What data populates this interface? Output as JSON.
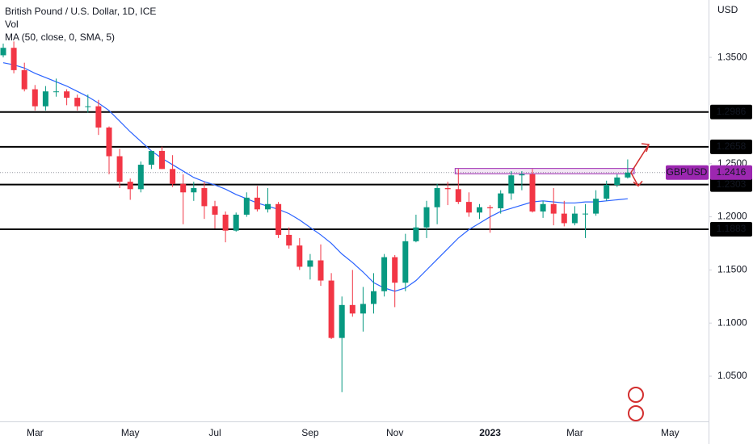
{
  "chart_data": {
    "type": "candlestick",
    "title": "British Pound / U.S. Dollar, 1D, ICE",
    "volume_label": "Vol",
    "currency": "USD",
    "categories": [
      null,
      null,
      null,
      "Mar",
      null,
      null,
      null,
      null,
      null,
      null,
      null,
      null,
      "May",
      null,
      null,
      null,
      null,
      null,
      null,
      null,
      "Jul",
      null,
      null,
      null,
      null,
      null,
      null,
      null,
      null,
      "Sep",
      null,
      null,
      null,
      null,
      null,
      null,
      null,
      "Nov",
      null,
      null,
      null,
      null,
      null,
      null,
      null,
      null,
      "2023",
      null,
      null,
      null,
      null,
      null,
      null,
      null,
      "Mar",
      null,
      null,
      null,
      null,
      null,
      null,
      null,
      null,
      "May"
    ],
    "open": [
      1.352,
      1.359,
      1.338,
      1.32,
      1.304,
      1.318,
      1.318,
      1.312,
      1.304,
      1.304,
      1.284,
      1.257,
      1.233,
      1.226,
      1.249,
      1.262,
      1.245,
      1.231,
      1.223,
      1.227,
      1.21,
      1.202,
      1.187,
      1.202,
      1.218,
      1.207,
      1.212,
      1.183,
      1.173,
      1.153,
      1.159,
      1.14,
      1.086,
      1.117,
      1.109,
      1.118,
      1.13,
      1.162,
      1.138,
      1.177,
      1.19,
      1.209,
      1.227,
      1.226,
      1.214,
      1.204,
      1.209,
      1.208,
      1.222,
      1.239,
      1.24,
      1.205,
      1.212,
      1.203,
      1.194,
      1.203,
      1.203,
      1.217,
      1.23,
      1.237,
      null,
      null,
      null,
      null
    ],
    "high": [
      1.363,
      1.365,
      1.345,
      1.324,
      1.323,
      1.33,
      1.32,
      1.315,
      1.315,
      1.31,
      1.285,
      1.264,
      1.236,
      1.252,
      1.262,
      1.266,
      1.258,
      1.24,
      1.233,
      1.233,
      1.215,
      1.205,
      1.204,
      1.223,
      1.229,
      1.227,
      1.214,
      1.19,
      1.18,
      1.165,
      1.174,
      1.147,
      1.125,
      1.15,
      1.134,
      1.147,
      1.165,
      1.164,
      1.184,
      1.202,
      1.215,
      1.231,
      1.233,
      1.245,
      1.223,
      1.212,
      1.211,
      1.225,
      1.243,
      1.243,
      1.245,
      1.215,
      1.227,
      1.215,
      1.21,
      1.212,
      1.225,
      1.234,
      1.24,
      1.254,
      null,
      null,
      null,
      null
    ],
    "low": [
      1.35,
      1.335,
      1.318,
      1.3,
      1.3,
      1.313,
      1.305,
      1.3,
      1.298,
      1.277,
      1.24,
      1.227,
      1.216,
      1.223,
      1.245,
      1.245,
      1.228,
      1.193,
      1.215,
      1.198,
      1.189,
      1.176,
      1.186,
      1.2,
      1.205,
      1.204,
      1.18,
      1.17,
      1.15,
      1.141,
      1.135,
      1.085,
      1.035,
      1.106,
      1.092,
      1.109,
      1.125,
      1.115,
      1.13,
      1.176,
      1.18,
      1.193,
      1.211,
      1.212,
      1.2,
      1.198,
      1.185,
      1.203,
      1.216,
      1.225,
      1.204,
      1.199,
      1.192,
      1.191,
      1.192,
      1.18,
      1.201,
      1.215,
      1.228,
      1.236,
      null,
      null,
      null,
      null
    ],
    "close": [
      1.359,
      1.338,
      1.32,
      1.304,
      1.318,
      1.318,
      1.312,
      1.304,
      1.304,
      1.284,
      1.257,
      1.233,
      1.226,
      1.249,
      1.262,
      1.245,
      1.231,
      1.223,
      1.227,
      1.21,
      1.202,
      1.187,
      1.202,
      1.218,
      1.207,
      1.212,
      1.183,
      1.173,
      1.153,
      1.159,
      1.14,
      1.086,
      1.117,
      1.109,
      1.118,
      1.13,
      1.162,
      1.138,
      1.177,
      1.19,
      1.209,
      1.227,
      1.226,
      1.214,
      1.204,
      1.209,
      1.208,
      1.222,
      1.239,
      1.24,
      1.205,
      1.212,
      1.203,
      1.194,
      1.203,
      1.203,
      1.217,
      1.23,
      1.237,
      1.2416,
      null,
      null,
      null,
      null
    ],
    "up_color": "#089981",
    "down_color": "#f23645",
    "ma": {
      "name": "MA (50, close, 0, SMA, 5)",
      "color": "#2962ff",
      "values": [
        1.345,
        1.343,
        1.34,
        1.335,
        1.331,
        1.327,
        1.323,
        1.318,
        1.313,
        1.307,
        1.3,
        1.29,
        1.28,
        1.271,
        1.262,
        1.255,
        1.249,
        1.243,
        1.237,
        1.233,
        1.23,
        1.226,
        1.221,
        1.217,
        1.213,
        1.21,
        1.207,
        1.203,
        1.197,
        1.19,
        1.183,
        1.175,
        1.165,
        1.157,
        1.148,
        1.138,
        1.133,
        1.13,
        1.133,
        1.14,
        1.15,
        1.16,
        1.17,
        1.18,
        1.188,
        1.194,
        1.2,
        1.205,
        1.208,
        1.211,
        1.214,
        1.215,
        1.214,
        1.213,
        1.213,
        1.214,
        1.214,
        1.215,
        1.216,
        1.217,
        null,
        null,
        null,
        null
      ]
    },
    "ylim": [
      1.009,
      1.404
    ],
    "yticks": [
      {
        "value": 1.05,
        "label": "1.0500"
      },
      {
        "value": 1.1,
        "label": "1.1000"
      },
      {
        "value": 1.15,
        "label": "1.1500"
      },
      {
        "value": 1.2,
        "label": "1.2000"
      },
      {
        "value": 1.25,
        "label": "1.2500"
      },
      {
        "value": 1.35,
        "label": "1.3500"
      }
    ],
    "levels": [
      1.2986,
      1.2658,
      1.2303,
      1.1883
    ],
    "symbol": "GBPUSD",
    "last_price": 1.2416,
    "resistance_zone": [
      1.2405,
      1.2455
    ],
    "grid": false
  }
}
